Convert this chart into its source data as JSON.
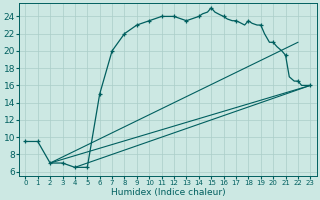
{
  "xlabel": "Humidex (Indice chaleur)",
  "xlim": [
    -0.5,
    23.5
  ],
  "ylim": [
    5.5,
    25.5
  ],
  "xticks": [
    0,
    1,
    2,
    3,
    4,
    5,
    6,
    7,
    8,
    9,
    10,
    11,
    12,
    13,
    14,
    15,
    16,
    17,
    18,
    19,
    20,
    21,
    22,
    23
  ],
  "yticks": [
    6,
    8,
    10,
    12,
    14,
    16,
    18,
    20,
    22,
    24
  ],
  "bg_color": "#cce8e3",
  "line_color": "#005f5f",
  "grid_color": "#aacec8",
  "main_curve_x": [
    0,
    1,
    2,
    3,
    4,
    5,
    6,
    7,
    8,
    9,
    10,
    11,
    12,
    13,
    14,
    14.3,
    14.7,
    15,
    15.3,
    15.7,
    16,
    16.3,
    16.7,
    17,
    17.3,
    17.7,
    18,
    18.3,
    18.7,
    19,
    19.3,
    19.7,
    20,
    20.3,
    20.7,
    21,
    21.3,
    21.7,
    22,
    22.3,
    22.7,
    23
  ],
  "main_curve_y": [
    9.5,
    9.5,
    7.0,
    7.0,
    6.5,
    6.5,
    15.0,
    20.0,
    22.0,
    23.0,
    23.5,
    24.0,
    24.0,
    23.5,
    24.0,
    24.3,
    24.5,
    25.0,
    24.5,
    24.2,
    24.0,
    23.7,
    23.5,
    23.5,
    23.3,
    23.0,
    23.5,
    23.2,
    23.0,
    23.0,
    22.0,
    21.0,
    21.0,
    20.5,
    20.0,
    19.5,
    17.0,
    16.5,
    16.5,
    16.0,
    16.0,
    16.0
  ],
  "line1_x": [
    2,
    23
  ],
  "line1_y": [
    7.0,
    16.0
  ],
  "line2_x": [
    2,
    22
  ],
  "line2_y": [
    7.0,
    21.0
  ],
  "line3_x": [
    4,
    23
  ],
  "line3_y": [
    6.5,
    16.0
  ],
  "marker_x": [
    0,
    1,
    2,
    3,
    4,
    5,
    6,
    7,
    8,
    9,
    10,
    11,
    12,
    13,
    14,
    15,
    16,
    17,
    18,
    19,
    20,
    21,
    22,
    23
  ],
  "marker_y": [
    9.5,
    9.5,
    7.0,
    7.0,
    6.5,
    6.5,
    15.0,
    20.0,
    22.0,
    23.0,
    23.5,
    24.0,
    24.0,
    23.5,
    24.0,
    25.0,
    24.0,
    23.5,
    23.5,
    23.0,
    21.0,
    19.5,
    16.5,
    16.0
  ]
}
